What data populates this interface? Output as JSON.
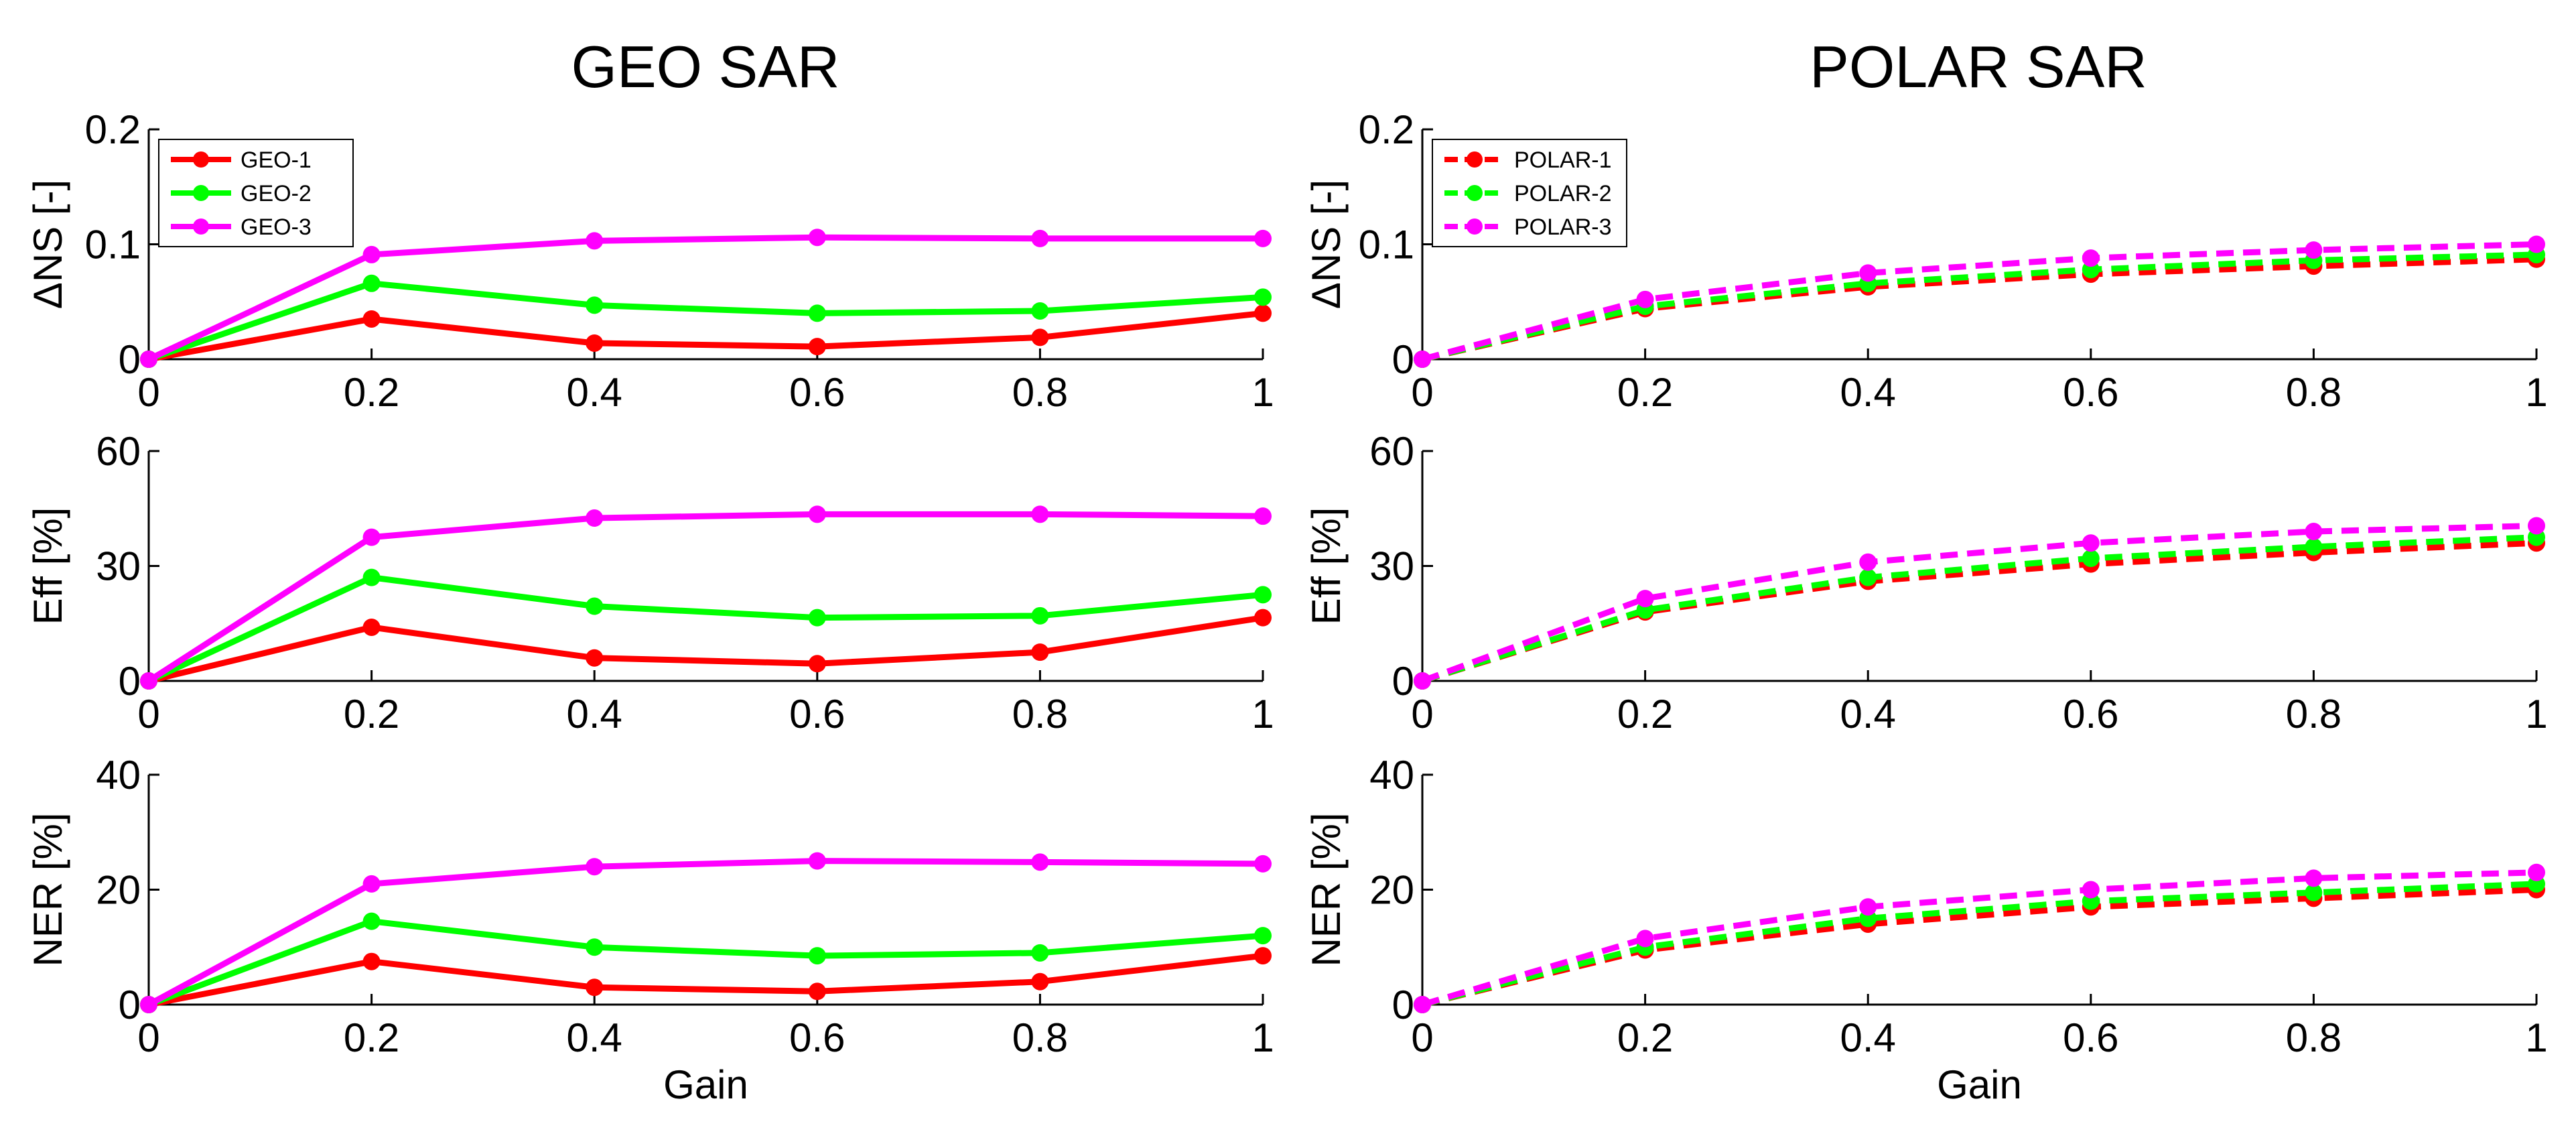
{
  "colors": {
    "series_1": "#ff0000",
    "series_2": "#00ff00",
    "series_3": "#ff00ff",
    "axis": "#000000",
    "background": "#ffffff"
  },
  "columns": [
    {
      "title": "GEO SAR",
      "line_style": "solid",
      "legend_in_panel": 0
    },
    {
      "title": "POLAR SAR",
      "line_style": "dashed",
      "legend_in_panel": 0
    }
  ],
  "chart_data": [
    {
      "type": "line",
      "title": "GEO SAR",
      "xlabel": "",
      "ylabel": "ΔNS [-]",
      "x": [
        0,
        0.2,
        0.4,
        0.6,
        0.8,
        1
      ],
      "x_tick_labels": [
        "0",
        "0.2",
        "0.4",
        "0.6",
        "0.8",
        "1"
      ],
      "xlim": [
        0,
        1
      ],
      "ylim": [
        0,
        0.2
      ],
      "y_ticks": [
        0,
        0.1,
        0.2
      ],
      "y_tick_labels": [
        "0",
        "0.1",
        "0.2"
      ],
      "grid": false,
      "legend_position": "top-left",
      "series": [
        {
          "name": "GEO-1",
          "values": [
            0,
            0.035,
            0.014,
            0.011,
            0.019,
            0.04
          ]
        },
        {
          "name": "GEO-2",
          "values": [
            0,
            0.066,
            0.047,
            0.04,
            0.042,
            0.054
          ]
        },
        {
          "name": "GEO-3",
          "values": [
            0,
            0.091,
            0.103,
            0.106,
            0.105,
            0.105
          ]
        }
      ]
    },
    {
      "type": "line",
      "title": "GEO SAR",
      "xlabel": "",
      "ylabel": "Eff [%]",
      "x": [
        0,
        0.2,
        0.4,
        0.6,
        0.8,
        1
      ],
      "x_tick_labels": [
        "0",
        "0.2",
        "0.4",
        "0.6",
        "0.8",
        "1"
      ],
      "xlim": [
        0,
        1
      ],
      "ylim": [
        0,
        60
      ],
      "y_ticks": [
        0,
        30,
        60
      ],
      "y_tick_labels": [
        "0",
        "30",
        "60"
      ],
      "grid": false,
      "series": [
        {
          "name": "GEO-1",
          "values": [
            0,
            14,
            6,
            4.5,
            7.5,
            16.5
          ]
        },
        {
          "name": "GEO-2",
          "values": [
            0,
            27,
            19.5,
            16.5,
            17,
            22.5
          ]
        },
        {
          "name": "GEO-3",
          "values": [
            0,
            37.5,
            42.5,
            43.5,
            43.5,
            43
          ]
        }
      ]
    },
    {
      "type": "line",
      "title": "GEO SAR",
      "xlabel": "Gain",
      "ylabel": "NER [%]",
      "x": [
        0,
        0.2,
        0.4,
        0.6,
        0.8,
        1
      ],
      "x_tick_labels": [
        "0",
        "0.2",
        "0.4",
        "0.6",
        "0.8",
        "1"
      ],
      "xlim": [
        0,
        1
      ],
      "ylim": [
        0,
        40
      ],
      "y_ticks": [
        0,
        20,
        40
      ],
      "y_tick_labels": [
        "0",
        "20",
        "40"
      ],
      "grid": false,
      "series": [
        {
          "name": "GEO-1",
          "values": [
            0,
            7.5,
            3,
            2.3,
            4,
            8.5
          ]
        },
        {
          "name": "GEO-2",
          "values": [
            0,
            14.5,
            10,
            8.5,
            9,
            12
          ]
        },
        {
          "name": "GEO-3",
          "values": [
            0,
            21,
            24,
            25,
            24.8,
            24.5
          ]
        }
      ]
    },
    {
      "type": "line",
      "title": "POLAR SAR",
      "xlabel": "",
      "ylabel": "ΔNS [-]",
      "x": [
        0,
        0.2,
        0.4,
        0.6,
        0.8,
        1
      ],
      "x_tick_labels": [
        "0",
        "0.2",
        "0.4",
        "0.6",
        "0.8",
        "1"
      ],
      "xlim": [
        0,
        1
      ],
      "ylim": [
        0,
        0.2
      ],
      "y_ticks": [
        0,
        0.1,
        0.2
      ],
      "y_tick_labels": [
        "0",
        "0.1",
        "0.2"
      ],
      "grid": false,
      "legend_position": "top-left",
      "series": [
        {
          "name": "POLAR-1",
          "values": [
            0,
            0.044,
            0.063,
            0.074,
            0.081,
            0.087
          ]
        },
        {
          "name": "POLAR-2",
          "values": [
            0,
            0.046,
            0.066,
            0.078,
            0.086,
            0.091
          ]
        },
        {
          "name": "POLAR-3",
          "values": [
            0,
            0.052,
            0.075,
            0.088,
            0.095,
            0.1
          ]
        }
      ]
    },
    {
      "type": "line",
      "title": "POLAR SAR",
      "xlabel": "",
      "ylabel": "Eff [%]",
      "x": [
        0,
        0.2,
        0.4,
        0.6,
        0.8,
        1
      ],
      "x_tick_labels": [
        "0",
        "0.2",
        "0.4",
        "0.6",
        "0.8",
        "1"
      ],
      "xlim": [
        0,
        1
      ],
      "ylim": [
        0,
        60
      ],
      "y_ticks": [
        0,
        30,
        60
      ],
      "y_tick_labels": [
        "0",
        "30",
        "60"
      ],
      "grid": false,
      "series": [
        {
          "name": "POLAR-1",
          "values": [
            0,
            18,
            26,
            30.5,
            33.5,
            36
          ]
        },
        {
          "name": "POLAR-2",
          "values": [
            0,
            18.5,
            27,
            32,
            35,
            37.5
          ]
        },
        {
          "name": "POLAR-3",
          "values": [
            0,
            21.5,
            31,
            36,
            39,
            40.5
          ]
        }
      ]
    },
    {
      "type": "line",
      "title": "POLAR SAR",
      "xlabel": "Gain",
      "ylabel": "NER [%]",
      "x": [
        0,
        0.2,
        0.4,
        0.6,
        0.8,
        1
      ],
      "x_tick_labels": [
        "0",
        "0.2",
        "0.4",
        "0.6",
        "0.8",
        "1"
      ],
      "xlim": [
        0,
        1
      ],
      "ylim": [
        0,
        40
      ],
      "y_ticks": [
        0,
        20,
        40
      ],
      "y_tick_labels": [
        "0",
        "20",
        "40"
      ],
      "grid": false,
      "series": [
        {
          "name": "POLAR-1",
          "values": [
            0,
            9.5,
            14,
            17,
            18.5,
            20
          ]
        },
        {
          "name": "POLAR-2",
          "values": [
            0,
            10,
            15,
            18,
            19.5,
            21
          ]
        },
        {
          "name": "POLAR-3",
          "values": [
            0,
            11.5,
            17,
            20,
            22,
            23
          ]
        }
      ]
    }
  ]
}
